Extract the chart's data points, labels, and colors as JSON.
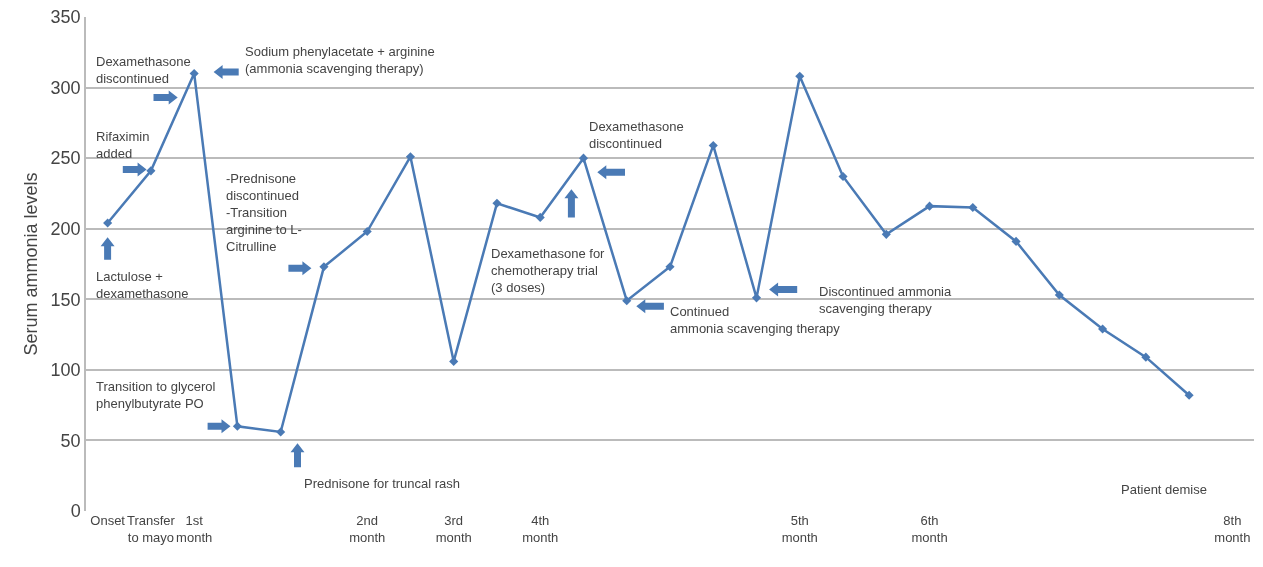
{
  "chart_data": {
    "type": "line",
    "ylabel": "Serum ammonia levels",
    "categories": [
      "Onset",
      "Transfer\nto mayo",
      "1st\nmonth",
      null,
      null,
      null,
      "2nd\nmonth",
      null,
      "3rd\nmonth",
      null,
      "4th\nmonth",
      null,
      null,
      null,
      null,
      null,
      "5th\nmonth",
      null,
      null,
      "6th\nmonth",
      null,
      null,
      null,
      null,
      null,
      null,
      "8th\nmonth"
    ],
    "series": [
      {
        "color": "#4a7ab5",
        "values": [
          204,
          241,
          310,
          60,
          56,
          173,
          198,
          251,
          106,
          218,
          208,
          250,
          149,
          173,
          259,
          151,
          308,
          237,
          196,
          216,
          215,
          191,
          153,
          129,
          109,
          82,
          null
        ]
      }
    ],
    "ylim": [
      0,
      350
    ],
    "yticks": [
      0,
      50,
      100,
      150,
      200,
      250,
      300,
      350
    ],
    "grid": "y",
    "marker": "diamond",
    "line_style": "solid",
    "annotations": [
      "Lactulose +\ndexamethasone",
      "Rifaximin\nadded",
      "Dexamethasone\ndiscontinued",
      "Sodium phenylacetate + arginine\n(ammonia scavenging therapy)",
      "-Prednisone\ndiscontinued\n-Transition\narginine to L-\nCitrulline",
      "Transition to glycerol\nphenylbutyrate PO",
      "Prednisone for truncal rash",
      "Dexamethasone for\nchemotherapy trial\n(3 doses)",
      "Dexamethasone\ndiscontinued",
      "Continued\nammonia scavenging therapy",
      "Discontinued ammonia\nscavenging therapy",
      "Patient demise"
    ]
  }
}
